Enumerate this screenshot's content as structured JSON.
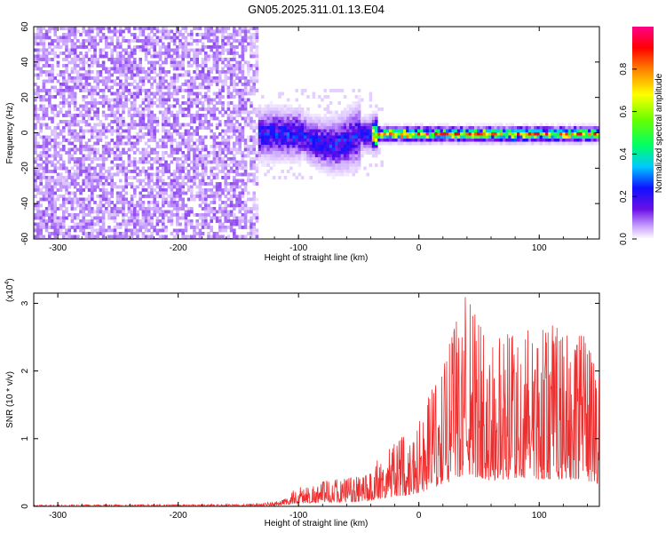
{
  "title": "GN05.2025.311.01.13.E04",
  "colors": {
    "snr_line": "#ee2e2e",
    "noise_purple": "#6a0fe6",
    "axis": "#000000"
  },
  "chart_data": [
    {
      "type": "heatmap",
      "name": "spectrogram",
      "xlabel": "Height of straight line (km)",
      "ylabel": "Frequency (Hz)",
      "xlim": [
        -320,
        150
      ],
      "ylim": [
        -60,
        60
      ],
      "xticks": [
        -300,
        -200,
        -100,
        0,
        100
      ],
      "yticks": [
        60,
        40,
        20,
        0,
        -20,
        -40,
        -60
      ],
      "colorbar": {
        "label": "Normalized spectral amplitude",
        "range": [
          0,
          1
        ],
        "ticks": [
          "0.0",
          "0.2",
          "0.4",
          "0.6",
          "0.8"
        ],
        "colormap": [
          "#ffffff",
          "#c8a0ff",
          "#6a0fe6",
          "#1010ff",
          "#00c8ff",
          "#00ff66",
          "#66ff00",
          "#ffff00",
          "#ff8000",
          "#ff0000",
          "#ff0088"
        ]
      },
      "description_regions": {
        "broadband_noise_x": [
          -320,
          -135
        ],
        "signal_band_x": [
          -135,
          150
        ],
        "signal_center_hz": 0
      }
    },
    {
      "type": "line",
      "name": "snr",
      "xlabel": "Height of straight line (km)",
      "ylabel": "SNR (10 * v/v)",
      "yscale_label": "(x10",
      "yscale_exp": "4",
      "yscale_close": ")",
      "xlim": [
        -320,
        150
      ],
      "ylim": [
        0,
        3.15
      ],
      "xticks": [
        -300,
        -200,
        -100,
        0,
        100
      ],
      "yticks": [
        0,
        1,
        2,
        3
      ],
      "envelope": [
        {
          "x": -320,
          "max": 0.02
        },
        {
          "x": -140,
          "max": 0.03
        },
        {
          "x": -115,
          "max": 0.08
        },
        {
          "x": -100,
          "max": 0.3
        },
        {
          "x": -70,
          "max": 0.4
        },
        {
          "x": -45,
          "max": 0.45
        },
        {
          "x": -25,
          "max": 0.9
        },
        {
          "x": -10,
          "max": 1.1
        },
        {
          "x": 0,
          "max": 1.3
        },
        {
          "x": 20,
          "max": 2.1
        },
        {
          "x": 38,
          "max": 3.15
        },
        {
          "x": 60,
          "max": 2.5
        },
        {
          "x": 90,
          "max": 2.6
        },
        {
          "x": 110,
          "max": 2.7
        },
        {
          "x": 140,
          "max": 2.5
        },
        {
          "x": 150,
          "max": 2.1
        }
      ]
    }
  ]
}
